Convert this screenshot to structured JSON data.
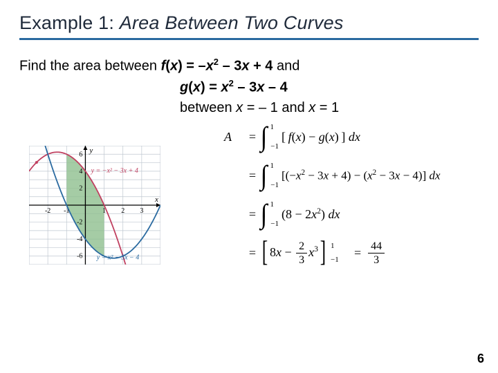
{
  "slide": {
    "title_prefix": "Example 1:",
    "title_italic": "Area Between Two Curves",
    "title_color": "#1f2a3a",
    "rule_color": "#2a6aa0",
    "page_number": "6"
  },
  "prompt": {
    "line1_pre": "Find the area between ",
    "f_label": "f",
    "paren_x": "(x)",
    "f_eq": " = –",
    "f_var1": "x",
    "f_sup1": "2",
    "f_mid": " – 3",
    "f_var2": "x",
    "f_tail": " + 4",
    "and": " and",
    "g_label": "g",
    "g_eq": " = ",
    "g_var1": "x",
    "g_sup1": "2",
    "g_mid": " – 3",
    "g_var2": "x",
    "g_tail": " – 4",
    "line3_pre": "between ",
    "x1v": "x",
    "x1_eq": " = – 1 and ",
    "x2v": "x",
    "x2_eq": " = 1"
  },
  "graph": {
    "bg": "#ffffff",
    "grid_color": "#bfc7d0",
    "axis_color": "#000000",
    "shade_color": "#8fbf8f",
    "curve_f_color": "#c04060",
    "curve_g_color": "#2a6aa0",
    "arrow_color": "#c04060",
    "arrow_color_g": "#2a6aa0",
    "label_f": "y = −x² − 3x + 4",
    "label_g": "y = x² − 3x − 4",
    "label_color_f": "#c04060",
    "label_color_g": "#2a6aa0",
    "x_range": [
      -3,
      4
    ],
    "y_range": [
      -7,
      7
    ],
    "x_ticks": [
      -2,
      -1,
      1,
      2,
      3
    ],
    "y_ticks": [
      -6,
      -4,
      -2,
      2,
      4,
      6
    ],
    "tick_fontsize": 10,
    "label_fontsize": 10,
    "y_axis_label": "y",
    "x_axis_label": "x",
    "shade_xrange": [
      -1,
      1
    ]
  },
  "math": {
    "A": "A",
    "ub": "1",
    "lb": "−1",
    "row1": "[ f(x) − g(x) ] dx",
    "row2": "[ (−x² − 3x + 4) − (x² − 3x − 4) ] dx",
    "row3": "(8 − 2x²) dx",
    "row4_inner_pre": "8",
    "row4_var": "x",
    "row4_minus": " − ",
    "row4_frac_num": "2",
    "row4_frac_den": "3",
    "row4_var2": "x",
    "row4_sup": "3",
    "result_num": "44",
    "result_den": "3"
  }
}
